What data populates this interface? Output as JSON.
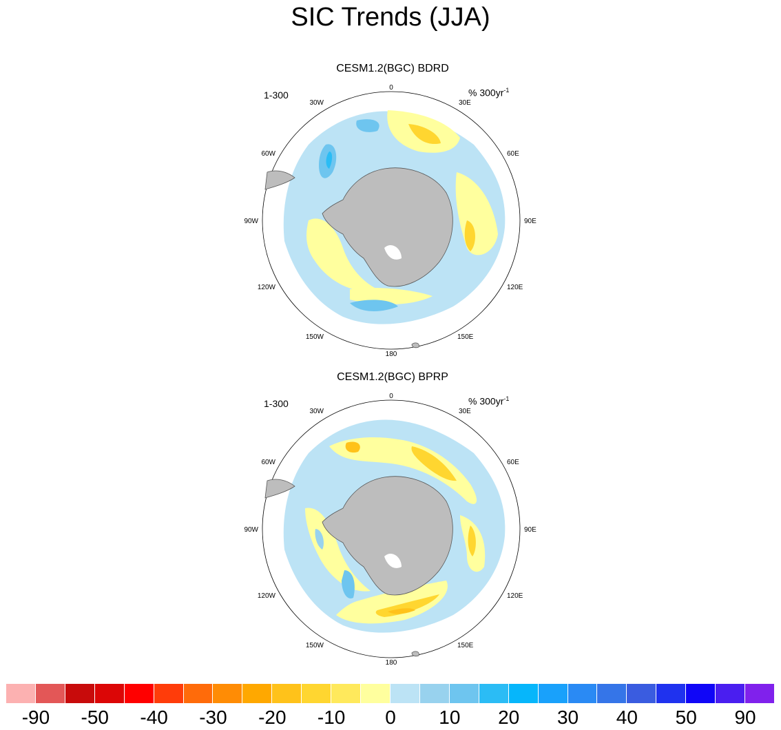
{
  "title": "SIC Trends (JJA)",
  "panels": [
    {
      "title": "CESM1.2(BGC) BDRD",
      "left_label": "1-300",
      "right_label": "% 300yr",
      "right_sup": "-1"
    },
    {
      "title": "CESM1.2(BGC) BPRP",
      "left_label": "1-300",
      "right_label": "% 300yr",
      "right_sup": "-1"
    }
  ],
  "longitude_labels": [
    "0",
    "30E",
    "60E",
    "90E",
    "120E",
    "150E",
    "180",
    "150W",
    "120W",
    "90W",
    "60W",
    "30W"
  ],
  "colorbar": {
    "colors": [
      "#fcb1b1",
      "#e35757",
      "#c80b0b",
      "#dc0606",
      "#ff0000",
      "#ff3c0a",
      "#ff6b0a",
      "#ff8c05",
      "#ffa800",
      "#ffc21a",
      "#ffd630",
      "#ffe95c",
      "#ffff9e",
      "#bce3f5",
      "#98d2ee",
      "#6ec5ef",
      "#2bbcf5",
      "#06b6fb",
      "#19a1fb",
      "#2a8af4",
      "#3575e8",
      "#3a5ce0",
      "#1f32ef",
      "#1006f7",
      "#4a1ef0",
      "#8021ec"
    ],
    "labels": [
      "-90",
      "-50",
      "-40",
      "-30",
      "-20",
      "-10",
      "0",
      "10",
      "20",
      "30",
      "40",
      "50",
      "90"
    ]
  },
  "colors": {
    "land": "#bdbdbd",
    "positive_ice": "#bce3f5",
    "negative_ice": "#ffff9e"
  }
}
